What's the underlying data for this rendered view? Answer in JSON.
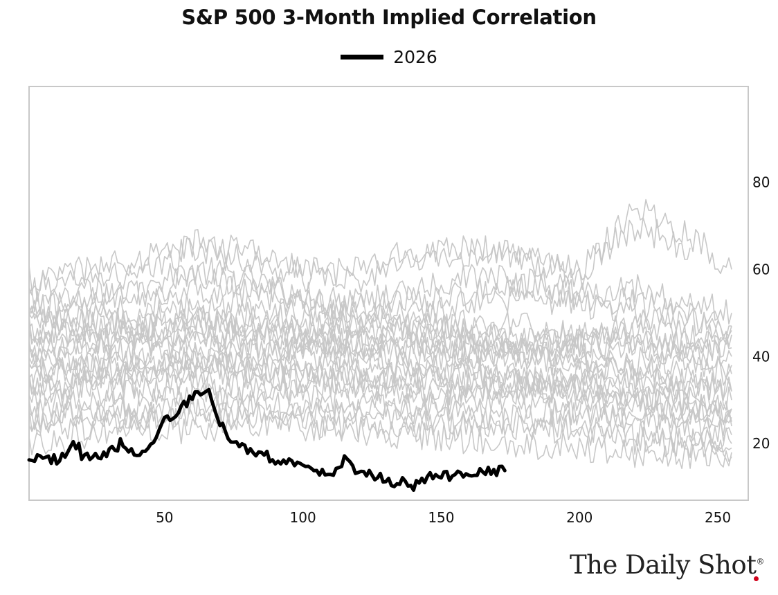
{
  "chart_data": {
    "type": "line",
    "title": "S&P 500 3-Month Implied Correlation",
    "xlabel": "",
    "ylabel": "",
    "xlim": [
      1,
      261
    ],
    "ylim": [
      7,
      102
    ],
    "x_ticks": [
      50,
      100,
      150,
      200,
      250
    ],
    "y_ticks": [
      20,
      40,
      60,
      80
    ],
    "y_axis_side": "right",
    "grid": false,
    "legend_position": "top-center",
    "background_series_color": "#c8c8c8",
    "highlight": {
      "name": "2026",
      "color": "#000000",
      "x": [
        1,
        5,
        10,
        15,
        19,
        20,
        25,
        30,
        35,
        40,
        45,
        50,
        55,
        60,
        65,
        70,
        75,
        80,
        85,
        90,
        95,
        100,
        105,
        110,
        115,
        120,
        125,
        130,
        135,
        140,
        145,
        150,
        155,
        160,
        165,
        170,
        173
      ],
      "y": [
        17.5,
        16.8,
        16.2,
        17.8,
        20.5,
        17,
        16.8,
        18,
        20.5,
        17.5,
        19.5,
        25,
        28,
        30,
        33,
        25,
        20,
        18,
        17.5,
        16.5,
        16,
        15,
        13,
        12.5,
        16,
        13,
        12.5,
        11.5,
        11,
        10.5,
        12,
        13,
        12.5,
        13.5,
        14,
        13.5,
        13.8
      ]
    },
    "background_series": [
      {
        "x": [
          1,
          20,
          40,
          60,
          80,
          100,
          120,
          140,
          160,
          180,
          200,
          220,
          240,
          255
        ],
        "y": [
          48,
          52,
          55,
          60,
          58,
          53,
          50,
          47,
          46,
          44,
          42,
          43,
          40,
          46
        ]
      },
      {
        "x": [
          1,
          20,
          40,
          60,
          80,
          100,
          120,
          140,
          160,
          180,
          200,
          220,
          240,
          255
        ],
        "y": [
          55,
          60,
          58,
          65,
          62,
          58,
          60,
          64,
          66,
          62,
          58,
          75,
          68,
          60
        ]
      },
      {
        "x": [
          1,
          20,
          40,
          60,
          80,
          100,
          120,
          140,
          160,
          180,
          200,
          220,
          240,
          255
        ],
        "y": [
          40,
          44,
          42,
          47,
          45,
          43,
          40,
          38,
          36,
          35,
          33,
          34,
          31,
          28
        ]
      },
      {
        "x": [
          1,
          20,
          40,
          60,
          80,
          100,
          120,
          140,
          160,
          180,
          200,
          220,
          240,
          255
        ],
        "y": [
          35,
          38,
          36,
          40,
          38,
          36,
          34,
          32,
          31,
          29,
          27,
          25,
          23,
          20
        ]
      },
      {
        "x": [
          1,
          20,
          40,
          60,
          80,
          100,
          120,
          140,
          160,
          180,
          200,
          220,
          240,
          255
        ],
        "y": [
          30,
          33,
          31,
          35,
          33,
          31,
          30,
          29,
          27,
          25,
          24,
          22,
          21,
          18
        ]
      },
      {
        "x": [
          1,
          20,
          40,
          60,
          80,
          100,
          120,
          140,
          160,
          180,
          200,
          220,
          240,
          255
        ],
        "y": [
          25,
          28,
          27,
          30,
          29,
          28,
          27,
          26,
          25,
          24,
          23,
          21,
          20,
          19
        ]
      },
      {
        "x": [
          1,
          20,
          40,
          60,
          80,
          100,
          120,
          140,
          160,
          180,
          200,
          220,
          240,
          255
        ],
        "y": [
          20,
          22,
          24,
          23,
          25,
          26,
          27,
          28,
          30,
          32,
          34,
          30,
          28,
          25
        ]
      },
      {
        "x": [
          1,
          20,
          40,
          60,
          80,
          100,
          120,
          140,
          160,
          180,
          200,
          220,
          240,
          255
        ],
        "y": [
          50,
          53,
          51,
          56,
          55,
          52,
          49,
          47,
          46,
          44,
          43,
          42,
          40,
          38
        ]
      },
      {
        "x": [
          1,
          20,
          40,
          60,
          80,
          100,
          120,
          140,
          160,
          180,
          200,
          220,
          240,
          255
        ],
        "y": [
          45,
          48,
          47,
          50,
          49,
          48,
          46,
          45,
          44,
          43,
          44,
          45,
          43,
          40
        ]
      },
      {
        "x": [
          1,
          20,
          40,
          60,
          80,
          100,
          120,
          140,
          160,
          180,
          200,
          220,
          240,
          255
        ],
        "y": [
          42,
          44,
          43,
          45,
          44,
          46,
          48,
          50,
          52,
          54,
          52,
          50,
          48,
          45
        ]
      },
      {
        "x": [
          1,
          20,
          40,
          60,
          80,
          100,
          120,
          140,
          160,
          180,
          200,
          220,
          240,
          255
        ],
        "y": [
          38,
          40,
          39,
          42,
          41,
          42,
          44,
          46,
          48,
          47,
          45,
          43,
          41,
          42
        ]
      },
      {
        "x": [
          1,
          20,
          40,
          60,
          80,
          100,
          120,
          140,
          160,
          180,
          200,
          220,
          240,
          255
        ],
        "y": [
          33,
          35,
          34,
          37,
          36,
          38,
          40,
          41,
          42,
          40,
          38,
          36,
          34,
          30
        ]
      },
      {
        "x": [
          1,
          20,
          40,
          60,
          80,
          100,
          120,
          140,
          160,
          180,
          200,
          220,
          240,
          255
        ],
        "y": [
          28,
          30,
          29,
          32,
          31,
          33,
          35,
          36,
          37,
          35,
          33,
          31,
          29,
          26
        ]
      },
      {
        "x": [
          1,
          20,
          40,
          60,
          80,
          100,
          120,
          140,
          160,
          180,
          200,
          220,
          240,
          255
        ],
        "y": [
          22,
          24,
          26,
          28,
          27,
          25,
          24,
          23,
          24,
          26,
          28,
          27,
          25,
          22
        ]
      },
      {
        "x": [
          1,
          20,
          40,
          60,
          80,
          100,
          120,
          140,
          160,
          180,
          200,
          220,
          240,
          255
        ],
        "y": [
          52,
          55,
          54,
          58,
          56,
          54,
          52,
          55,
          58,
          57,
          55,
          56,
          52,
          50
        ]
      },
      {
        "x": [
          1,
          20,
          40,
          60,
          80,
          100,
          120,
          140,
          160,
          180,
          200,
          220,
          240,
          255
        ],
        "y": [
          44,
          46,
          45,
          48,
          47,
          45,
          43,
          41,
          40,
          41,
          43,
          48,
          44,
          47
        ]
      },
      {
        "x": [
          1,
          20,
          40,
          60,
          80,
          100,
          120,
          140,
          160,
          180,
          200,
          220,
          240,
          255
        ],
        "y": [
          36,
          37,
          38,
          39,
          37,
          35,
          33,
          32,
          33,
          34,
          36,
          38,
          35,
          32
        ]
      },
      {
        "x": [
          1,
          20,
          40,
          60,
          80,
          100,
          120,
          140,
          160,
          180,
          200,
          220,
          240,
          255
        ],
        "y": [
          26,
          27,
          25,
          27,
          26,
          24,
          23,
          22,
          21,
          20,
          19,
          18,
          17,
          17
        ]
      },
      {
        "x": [
          1,
          20,
          40,
          60,
          80,
          100,
          120,
          140,
          160,
          180,
          200,
          220,
          240,
          255
        ],
        "y": [
          32,
          34,
          36,
          38,
          40,
          42,
          43,
          44,
          42,
          40,
          38,
          36,
          34,
          32
        ]
      },
      {
        "x": [
          1,
          20,
          40,
          60,
          80,
          100,
          120,
          140,
          160,
          180,
          200,
          220,
          240,
          255
        ],
        "y": [
          47,
          49,
          48,
          52,
          51,
          50,
          51,
          53,
          55,
          56,
          54,
          52,
          49,
          47
        ]
      },
      {
        "x": [
          1,
          20,
          40,
          60,
          80,
          100,
          120,
          140,
          160,
          180,
          200,
          220,
          240
        ],
        "y": [
          58,
          60,
          62,
          66,
          64,
          60,
          58,
          62,
          64,
          63,
          60,
          70,
          65
        ]
      },
      {
        "x": [
          1,
          20,
          40,
          60,
          80,
          100,
          120,
          140,
          160,
          180,
          200,
          220,
          240,
          255
        ],
        "y": [
          40,
          42,
          41,
          44,
          43,
          41,
          39,
          37,
          35,
          33,
          31,
          29,
          27,
          24
        ]
      },
      {
        "x": [
          1,
          20,
          40,
          60,
          80,
          100,
          120,
          140,
          160,
          180,
          200,
          220,
          240,
          255
        ],
        "y": [
          35,
          37,
          36,
          39,
          38,
          37,
          36,
          35,
          34,
          33,
          32,
          31,
          29,
          28
        ]
      },
      {
        "x": [
          1,
          20,
          40,
          60,
          80,
          100,
          120,
          140,
          160,
          180,
          200,
          220,
          240,
          255
        ],
        "y": [
          46,
          47,
          46,
          48,
          47,
          45,
          44,
          43,
          42,
          41,
          40,
          39,
          38,
          36
        ]
      }
    ],
    "annotations": []
  },
  "brand": {
    "logo_text": "The Daily Shot",
    "logo_mark": "®",
    "accent_color": "#d0021b"
  }
}
